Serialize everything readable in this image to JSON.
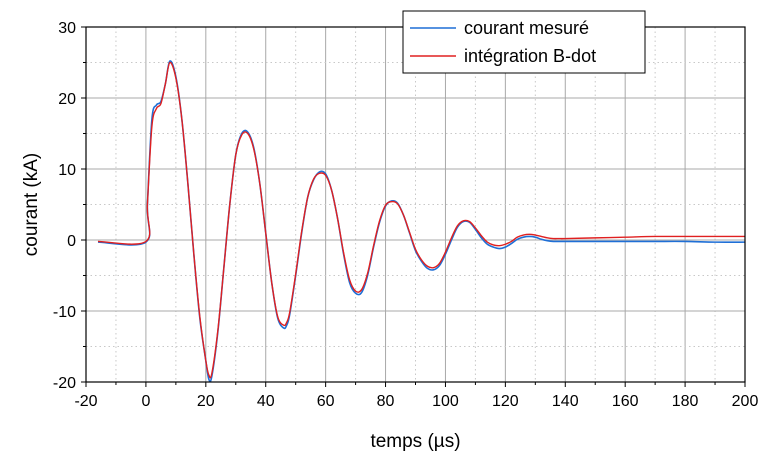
{
  "chart_data": {
    "type": "line",
    "title": "",
    "xlabel": "temps (µs)",
    "ylabel": "courant (kA)",
    "xlim": [
      -20,
      200
    ],
    "ylim": [
      -20,
      30
    ],
    "xticks": [
      -20,
      0,
      20,
      40,
      60,
      80,
      100,
      120,
      140,
      160,
      180,
      200
    ],
    "yticks": [
      -20,
      -10,
      0,
      10,
      20,
      30
    ],
    "grid": true,
    "legend_position": "top-right",
    "series": [
      {
        "name": "courant mesuré",
        "color": "#1f6fd6",
        "x": [
          -16,
          0,
          0.5,
          2,
          3.5,
          5,
          6.5,
          8,
          10,
          12,
          14,
          16,
          18,
          20,
          21,
          22,
          24,
          26,
          28,
          30,
          32,
          34,
          36,
          38,
          40,
          42,
          44,
          46,
          47,
          48,
          50,
          52,
          54,
          56,
          58,
          60,
          62,
          64,
          66,
          68,
          70,
          72,
          74,
          76,
          78,
          80,
          82,
          84,
          86,
          88,
          90,
          92,
          94,
          96,
          98,
          100,
          102,
          104,
          106,
          108,
          110,
          112,
          114,
          116,
          118,
          120,
          122,
          124,
          126,
          128,
          130,
          132,
          134,
          136,
          138,
          140,
          150,
          160,
          170,
          180,
          190,
          200
        ],
        "y": [
          -0.3,
          -0.3,
          5,
          17,
          19,
          19.5,
          22,
          25.2,
          23,
          17,
          8,
          -2,
          -11,
          -17,
          -19.6,
          -19.2,
          -13,
          -4,
          5,
          12,
          15,
          15.2,
          13,
          8,
          1,
          -6,
          -11,
          -12.4,
          -12,
          -10.5,
          -5,
          1,
          6,
          8.5,
          9.6,
          9.3,
          7,
          3,
          -2,
          -6,
          -7.5,
          -7.4,
          -5,
          -1,
          2.5,
          4.8,
          5.5,
          5.2,
          3.5,
          1,
          -1.5,
          -3,
          -4,
          -4.2,
          -3.6,
          -2,
          0,
          1.8,
          2.6,
          2.5,
          1.5,
          0.3,
          -0.6,
          -1,
          -1.2,
          -1,
          -0.5,
          0.1,
          0.4,
          0.5,
          0.4,
          0.1,
          -0.1,
          -0.2,
          -0.2,
          -0.2,
          -0.2,
          -0.2,
          -0.2,
          -0.2,
          -0.3,
          -0.3
        ]
      },
      {
        "name": "intégration B-dot",
        "color": "#e02020",
        "x": [
          -16,
          0,
          0.5,
          2,
          3.5,
          5,
          6.5,
          8,
          10,
          12,
          14,
          16,
          18,
          20,
          21,
          22,
          24,
          26,
          28,
          30,
          32,
          34,
          36,
          38,
          40,
          42,
          44,
          46,
          47,
          48,
          50,
          52,
          54,
          56,
          58,
          60,
          62,
          64,
          66,
          68,
          70,
          72,
          74,
          76,
          78,
          80,
          82,
          84,
          86,
          88,
          90,
          92,
          94,
          96,
          98,
          100,
          102,
          104,
          106,
          108,
          110,
          112,
          114,
          116,
          118,
          120,
          122,
          124,
          126,
          128,
          130,
          132,
          134,
          136,
          138,
          140,
          150,
          160,
          170,
          180,
          190,
          200
        ],
        "y": [
          -0.2,
          -0.2,
          5,
          16,
          18.5,
          19.2,
          22,
          25,
          22.8,
          17,
          8,
          -2,
          -10.8,
          -17,
          -19,
          -18.8,
          -12.8,
          -4,
          5,
          12,
          14.8,
          15,
          12.8,
          8,
          1,
          -6,
          -10.8,
          -12,
          -11.6,
          -10.2,
          -4.8,
          1.2,
          6,
          8.6,
          9.4,
          9.1,
          7,
          3,
          -1.8,
          -5.6,
          -7.2,
          -7,
          -4.7,
          -0.8,
          2.7,
          4.9,
          5.4,
          5.1,
          3.5,
          1.1,
          -1.3,
          -2.8,
          -3.7,
          -3.9,
          -3.3,
          -1.7,
          0.3,
          2,
          2.7,
          2.6,
          1.7,
          0.6,
          -0.3,
          -0.7,
          -0.8,
          -0.6,
          -0.2,
          0.4,
          0.7,
          0.8,
          0.7,
          0.5,
          0.3,
          0.2,
          0.2,
          0.2,
          0.3,
          0.4,
          0.5,
          0.5,
          0.5,
          0.5
        ]
      }
    ]
  }
}
